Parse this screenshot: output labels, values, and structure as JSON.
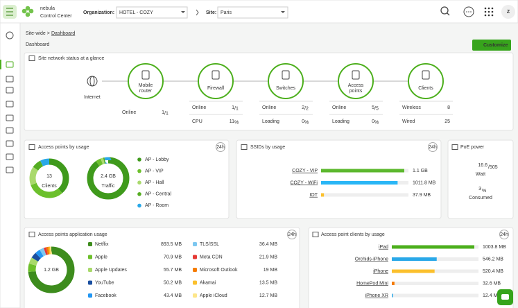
{
  "header": {
    "brand_line1": "nebula",
    "brand_line2": "Control Center",
    "org_label": "Organization:",
    "org_value": "HOTEL - COZY",
    "site_label": "Site:",
    "site_value": "Paris",
    "avatar": "Z"
  },
  "breadcrumb": {
    "parent": "Site-wide >",
    "current": "Dashboard"
  },
  "page_title": "Dashboard",
  "customize": "Customize",
  "status": {
    "title": "Site network status at a glance",
    "nodes": [
      {
        "lines": [
          "Internet"
        ]
      },
      {
        "lines": [
          "Mobile",
          "router"
        ]
      },
      {
        "lines": [
          "Firewall"
        ]
      },
      {
        "lines": [
          "Switches"
        ]
      },
      {
        "lines": [
          "Access",
          "points"
        ]
      },
      {
        "lines": [
          "Clients"
        ]
      }
    ],
    "columns": [
      {
        "rows": [
          {
            "label": "Online",
            "value": "1",
            "unit": "/1"
          }
        ]
      },
      {
        "rows": [
          {
            "label": "Online",
            "value": "1",
            "unit": "/1"
          },
          {
            "label": "CPU",
            "value": "11",
            "unit": "%"
          }
        ]
      },
      {
        "rows": [
          {
            "label": "Online",
            "value": "2",
            "unit": "/2"
          },
          {
            "label": "Loading",
            "value": "0",
            "unit": "%"
          }
        ]
      },
      {
        "rows": [
          {
            "label": "Online",
            "value": "5",
            "unit": "/5"
          },
          {
            "label": "Loading",
            "value": "0",
            "unit": "%"
          }
        ]
      },
      {
        "rows": [
          {
            "label": "Wireless",
            "value": "8"
          },
          {
            "label": "Wired",
            "value": "25"
          }
        ]
      }
    ]
  },
  "ap_usage": {
    "title": "Access points by usage",
    "period": "24h",
    "clients": {
      "value": "13",
      "label": "Clients",
      "shares": [
        5,
        4,
        2,
        1,
        1
      ]
    },
    "traffic": {
      "value": "2.4 GB",
      "label": "Traffic",
      "shares": [
        90,
        4,
        2,
        1,
        3
      ]
    },
    "legend": [
      {
        "name": "AP - Lobby",
        "color": "#3f9a1c"
      },
      {
        "name": "AP - VIP",
        "color": "#6cc02c"
      },
      {
        "name": "AP - Hall",
        "color": "#a9d96c"
      },
      {
        "name": "AP - Central",
        "color": "#55ad22"
      },
      {
        "name": "AP - Room",
        "color": "#29a8e8"
      }
    ]
  },
  "ssids": {
    "title": "SSIDs by usage",
    "period": "24h",
    "items": [
      {
        "name": "COZY - VIP",
        "value": 1100,
        "label": "1.1 GB",
        "color": "#5cb82e"
      },
      {
        "name": "COZY - WiFi",
        "value": 1011.8,
        "label": "1011.8 MB",
        "color": "#29b6f6"
      },
      {
        "name": "IOT",
        "value": 37.9,
        "label": "37.9 MB",
        "color": "#fbc02d"
      }
    ]
  },
  "poe": {
    "title": "PoE power",
    "value": "16.6",
    "max": "/505",
    "unit": "Watt",
    "percent": "3",
    "percent_unit": "%",
    "percent_label": "Consumed"
  },
  "apps": {
    "title": "Access points application usage",
    "period": "24h",
    "total": "1.2 GB",
    "items": [
      {
        "name": "Netflix",
        "value": 893.5,
        "label": "893.5 MB",
        "color": "#3d8c1d"
      },
      {
        "name": "Apple",
        "value": 70.9,
        "label": "70.9 MB",
        "color": "#6cbf2a"
      },
      {
        "name": "Apple Updates",
        "value": 55.7,
        "label": "55.7 MB",
        "color": "#a8d96a"
      },
      {
        "name": "YouTube",
        "value": 50.2,
        "label": "50.2 MB",
        "color": "#1a4fa0"
      },
      {
        "name": "Facebook",
        "value": 43.4,
        "label": "43.4 MB",
        "color": "#2196f3"
      },
      {
        "name": "TLS/SSL",
        "value": 36.4,
        "label": "36.4 MB",
        "color": "#7cc7f0"
      },
      {
        "name": "Meta CDN",
        "value": 21.9,
        "label": "21.9 MB",
        "color": "#e53935"
      },
      {
        "name": "Microsoft Outlook",
        "value": 19,
        "label": "19 MB",
        "color": "#f57c00"
      },
      {
        "name": "Akamai",
        "value": 13.5,
        "label": "13.5 MB",
        "color": "#fbc02d"
      },
      {
        "name": "Apple iCloud",
        "value": 12.7,
        "label": "12.7 MB",
        "color": "#fde68a"
      }
    ]
  },
  "ap_clients": {
    "title": "Access point clients by usage",
    "period": "24h",
    "items": [
      {
        "name": "iPad",
        "value": 1003.8,
        "label": "1003.8 MB",
        "color": "#4caf1c"
      },
      {
        "name": "Orchids-iPhone",
        "value": 546.2,
        "label": "546.2 MB",
        "color": "#29a8e8"
      },
      {
        "name": "iPhone",
        "value": 520.4,
        "label": "520.4 MB",
        "color": "#fbc02d"
      },
      {
        "name": "HomePod Mini",
        "value": 32.6,
        "label": "32.6 MB",
        "color": "#f57c00"
      },
      {
        "name": "iPhone XR",
        "value": 12.4,
        "label": "12.4 MB",
        "color": "#29a8e8"
      }
    ]
  }
}
